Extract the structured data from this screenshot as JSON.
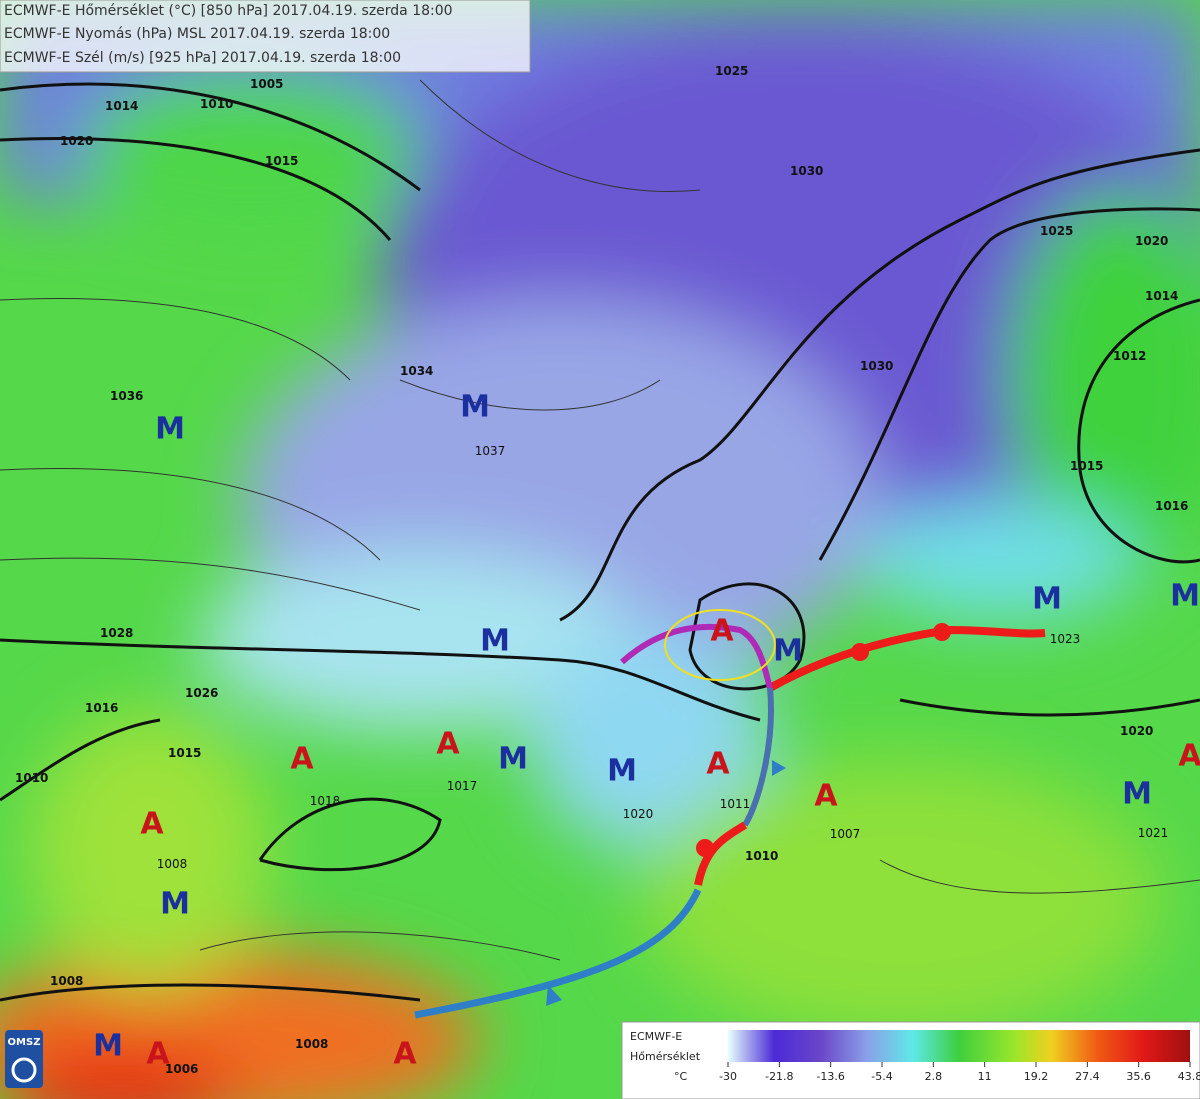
{
  "header": {
    "lines": [
      "ECMWF-E Hőmérséklet (°C) [850 hPa] 2017.04.19. szerda 18:00",
      "ECMWF-E Nyomás (hPa) MSL 2017.04.19. szerda 18:00",
      "ECMWF-E Szél (m/s) [925 hPa] 2017.04.19. szerda 18:00"
    ]
  },
  "pressure_centers": [
    {
      "label": "M"
    },
    {
      "label": "M",
      "value": "1037"
    },
    {
      "label": "M"
    },
    {
      "label": "M"
    },
    {
      "label": "M",
      "value": "1023"
    },
    {
      "label": "M"
    },
    {
      "label": "M"
    },
    {
      "label": "M",
      "value": "1020"
    },
    {
      "label": "M"
    },
    {
      "label": "M"
    },
    {
      "label": "M",
      "value": "1021"
    },
    {
      "label": "A"
    },
    {
      "label": "A",
      "value": "1017"
    },
    {
      "label": "A",
      "value": "1018"
    },
    {
      "label": "A",
      "value": "1008"
    },
    {
      "label": "A",
      "value": "1011"
    },
    {
      "label": "A",
      "value": "1007"
    },
    {
      "label": "A"
    },
    {
      "label": "A"
    },
    {
      "label": "A"
    }
  ],
  "isobar_labels": [
    "1005",
    "1010",
    "1020",
    "1015",
    "1025",
    "1030",
    "1020",
    "1025",
    "1030",
    "1015",
    "1034",
    "1036",
    "1028",
    "1026",
    "1016",
    "1014",
    "1012",
    "1008",
    "1015",
    "1010",
    "1010",
    "1020",
    "1016",
    "1014",
    "1008",
    "1006"
  ],
  "legend": {
    "title": "ECMWF-E",
    "subtitle": "Hőmérséklet",
    "unit": "°C",
    "ticks": [
      -30,
      -21.8,
      -13.6,
      -5.4,
      2.8,
      11,
      19.2,
      27.4,
      35.6,
      43.8
    ]
  },
  "logo": {
    "text": "OMSZ"
  }
}
